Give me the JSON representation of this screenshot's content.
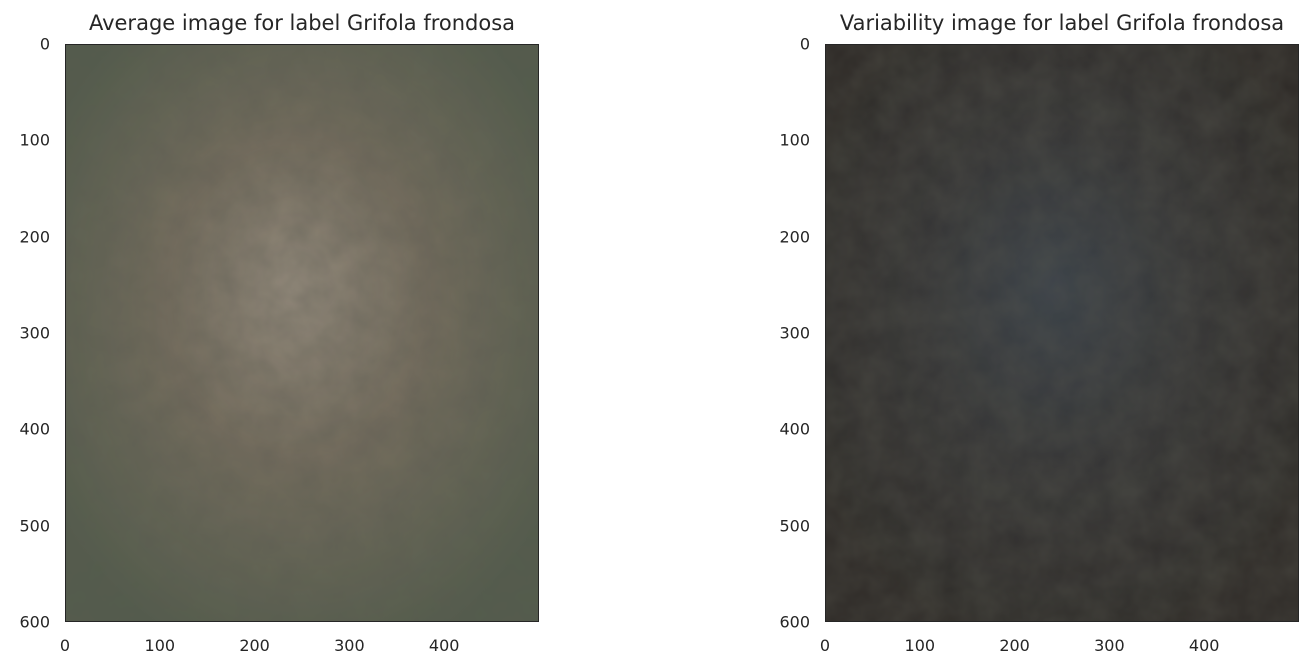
{
  "chart_data": [
    {
      "type": "heatmap",
      "title": "Average image for label Grifola frondosa",
      "xlim": [
        0,
        500
      ],
      "ylim": [
        600,
        0
      ],
      "xticks": [
        0,
        100,
        200,
        300,
        400
      ],
      "yticks": [
        0,
        100,
        200,
        300,
        400,
        500,
        600
      ],
      "grid": false,
      "colors": {
        "border": "#55604f",
        "center": "#a5998a",
        "mid": "#7d7464",
        "edge_dark": "#4a4a3c"
      }
    },
    {
      "type": "heatmap",
      "title": "Variability image for label Grifola frondosa",
      "xlim": [
        0,
        500
      ],
      "ylim": [
        600,
        0
      ],
      "xticks": [
        0,
        100,
        200,
        300,
        400
      ],
      "yticks": [
        0,
        100,
        200,
        300,
        400,
        500,
        600
      ],
      "grid": false,
      "colors": {
        "border": "#2e2a27",
        "center": "#3c4550",
        "mid": "#38383a",
        "edge_dark": "#2a2624"
      }
    }
  ]
}
